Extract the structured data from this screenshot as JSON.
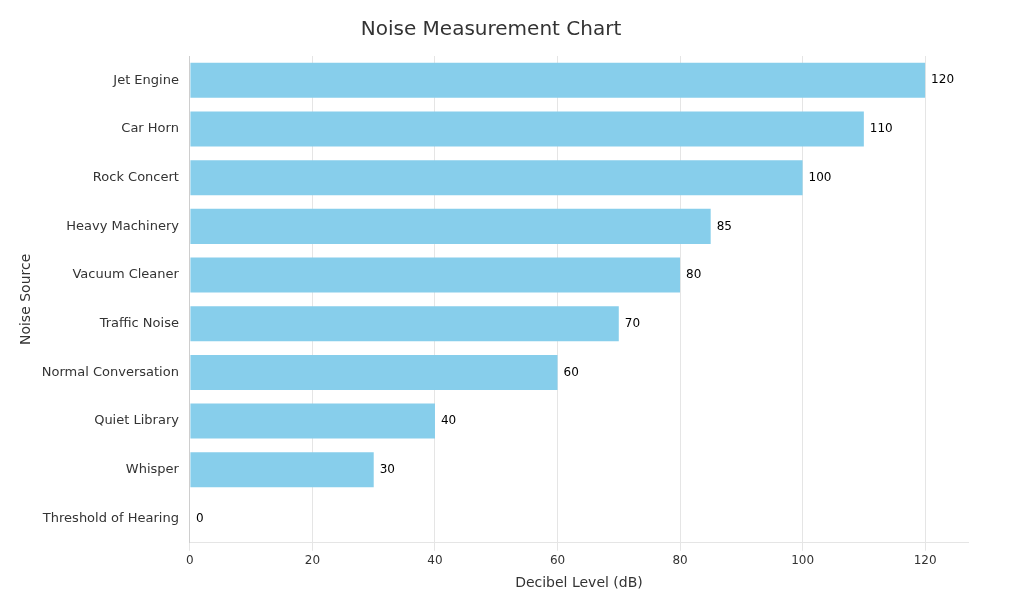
{
  "chart_data": {
    "type": "bar",
    "orientation": "horizontal",
    "title": "Noise Measurement Chart",
    "xlabel": "Decibel Level (dB)",
    "ylabel": "Noise Source",
    "categories": [
      "Jet Engine",
      "Car Horn",
      "Rock Concert",
      "Heavy Machinery",
      "Vacuum Cleaner",
      "Traffic Noise",
      "Normal Conversation",
      "Quiet Library",
      "Whisper",
      "Threshold of Hearing"
    ],
    "values": [
      120,
      110,
      100,
      85,
      80,
      70,
      60,
      40,
      30,
      0
    ],
    "color": "#87CEEB",
    "xlim": [
      0,
      127
    ],
    "xticks": [
      0,
      20,
      40,
      60,
      80,
      100,
      120
    ],
    "grid": "x",
    "data_labels": true
  }
}
